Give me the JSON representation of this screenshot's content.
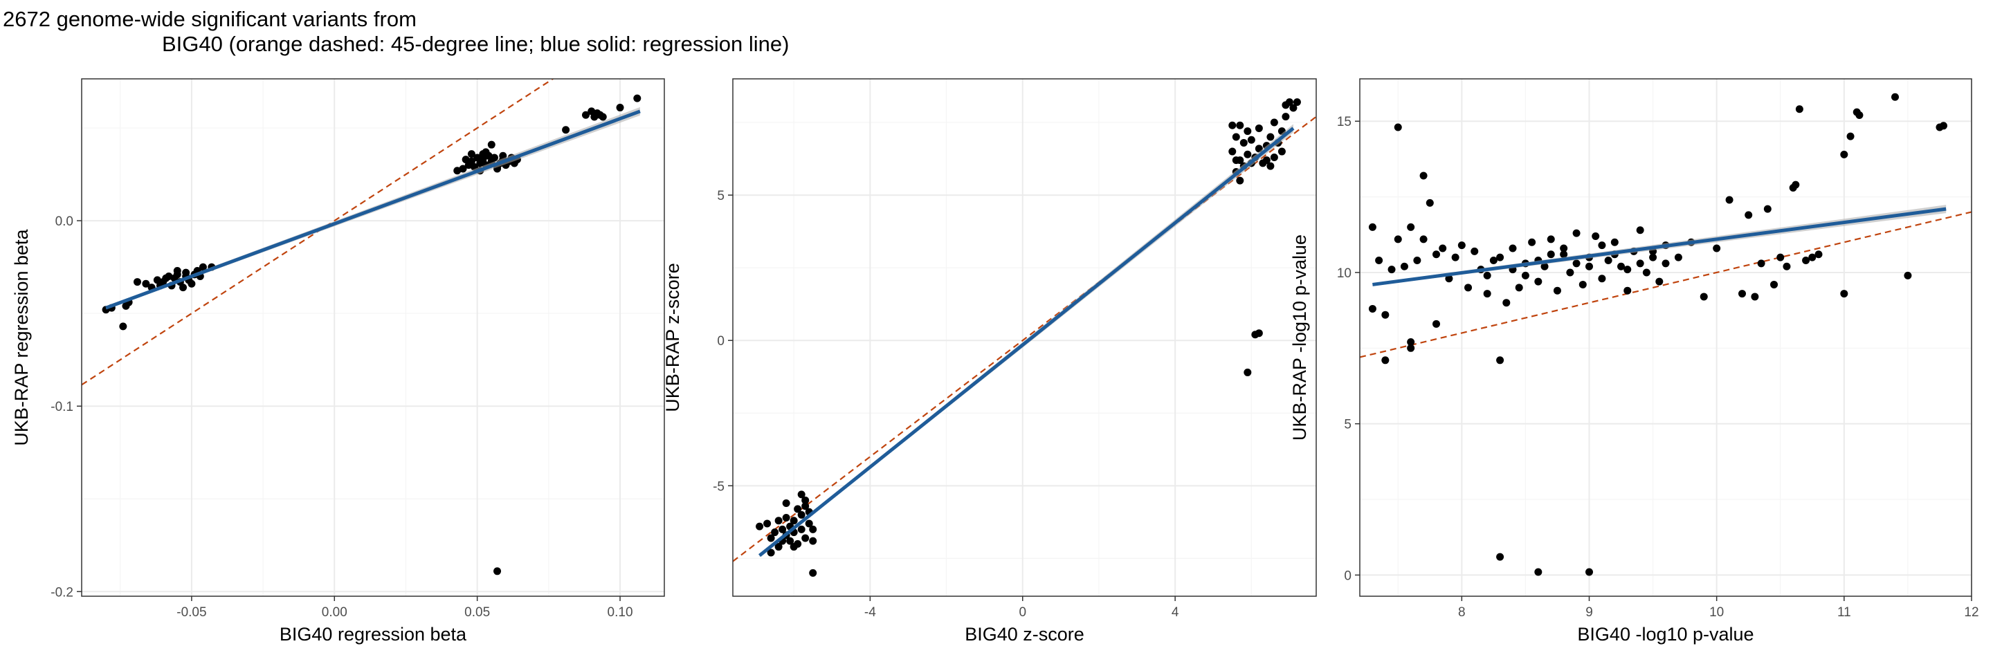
{
  "title": {
    "line1": "2672 genome-wide significant variants from",
    "line2": "BIG40 (orange dashed: 45-degree line; blue solid: regression line)"
  },
  "colors": {
    "points": "#000000",
    "identity_line": "#C0440E",
    "regression_line": "#1F5C99",
    "confidence_band": "#A9A9A9",
    "grid_major": "#EBEBEB",
    "grid_minor": "#F5F5F5",
    "panel_border": "#333333",
    "background": "#FFFFFF"
  },
  "chart_data": [
    {
      "type": "scatter",
      "xlabel": "BIG40 regression beta",
      "ylabel": "UKB-RAP regression beta",
      "xlim": [
        -0.0885,
        0.1155
      ],
      "ylim": [
        -0.2025,
        0.0765
      ],
      "xticks": [
        -0.05,
        0.0,
        0.05,
        0.1
      ],
      "xtick_labels": [
        "-0.05",
        "0.00",
        "0.05",
        "0.10"
      ],
      "yticks": [
        -0.2,
        -0.1,
        0.0
      ],
      "ytick_labels": [
        "-0.2",
        "-0.1",
        "0.0"
      ],
      "grid": true,
      "identity_line": {
        "slope": 1,
        "intercept": 0
      },
      "regression_line": {
        "x": [
          -0.08,
          0.107
        ],
        "y": [
          -0.047,
          0.059
        ]
      },
      "points": [
        [
          -0.08,
          -0.048
        ],
        [
          -0.078,
          -0.047
        ],
        [
          -0.073,
          -0.046
        ],
        [
          -0.074,
          -0.057
        ],
        [
          -0.072,
          -0.044
        ],
        [
          -0.069,
          -0.033
        ],
        [
          -0.066,
          -0.034
        ],
        [
          -0.064,
          -0.036
        ],
        [
          -0.062,
          -0.032
        ],
        [
          -0.06,
          -0.033
        ],
        [
          -0.058,
          -0.03
        ],
        [
          -0.057,
          -0.035
        ],
        [
          -0.056,
          -0.031
        ],
        [
          -0.055,
          -0.029
        ],
        [
          -0.054,
          -0.033
        ],
        [
          -0.053,
          -0.036
        ],
        [
          -0.052,
          -0.03
        ],
        [
          -0.051,
          -0.032
        ],
        [
          -0.05,
          -0.034
        ],
        [
          -0.049,
          -0.029
        ],
        [
          -0.048,
          -0.027
        ],
        [
          -0.047,
          -0.03
        ],
        [
          -0.046,
          -0.025
        ],
        [
          -0.043,
          -0.025
        ],
        [
          -0.055,
          -0.027
        ],
        [
          -0.059,
          -0.031
        ],
        [
          -0.061,
          -0.035
        ],
        [
          -0.052,
          -0.028
        ],
        [
          0.043,
          0.027
        ],
        [
          0.045,
          0.028
        ],
        [
          0.047,
          0.03
        ],
        [
          0.048,
          0.032
        ],
        [
          0.049,
          0.029
        ],
        [
          0.05,
          0.034
        ],
        [
          0.051,
          0.031
        ],
        [
          0.052,
          0.033
        ],
        [
          0.053,
          0.03
        ],
        [
          0.054,
          0.035
        ],
        [
          0.055,
          0.032
        ],
        [
          0.056,
          0.034
        ],
        [
          0.057,
          0.029
        ],
        [
          0.058,
          0.031
        ],
        [
          0.059,
          0.033
        ],
        [
          0.06,
          0.03
        ],
        [
          0.061,
          0.032
        ],
        [
          0.062,
          0.034
        ],
        [
          0.063,
          0.031
        ],
        [
          0.064,
          0.033
        ],
        [
          0.046,
          0.033
        ],
        [
          0.048,
          0.036
        ],
        [
          0.052,
          0.036
        ],
        [
          0.055,
          0.041
        ],
        [
          0.051,
          0.027
        ],
        [
          0.057,
          0.028
        ],
        [
          0.053,
          0.037
        ],
        [
          0.059,
          0.035
        ],
        [
          0.081,
          0.049
        ],
        [
          0.088,
          0.057
        ],
        [
          0.09,
          0.059
        ],
        [
          0.091,
          0.056
        ],
        [
          0.092,
          0.058
        ],
        [
          0.093,
          0.057
        ],
        [
          0.094,
          0.056
        ],
        [
          0.1,
          0.061
        ],
        [
          0.106,
          0.066
        ],
        [
          0.057,
          -0.189
        ]
      ]
    },
    {
      "type": "scatter",
      "xlabel": "BIG40 z-score",
      "ylabel": "UKB-RAP z-score",
      "xlim": [
        -7.6,
        7.7
      ],
      "ylim": [
        -8.8,
        9.0
      ],
      "xticks": [
        -4,
        0,
        4
      ],
      "xtick_labels": [
        "-4",
        "0",
        "4"
      ],
      "yticks": [
        -5,
        0,
        5
      ],
      "ytick_labels": [
        "-5",
        "0",
        "5"
      ],
      "grid": true,
      "identity_line": {
        "slope": 1,
        "intercept": 0
      },
      "regression_line": {
        "x": [
          -6.9,
          7.1
        ],
        "y": [
          -7.4,
          7.3
        ]
      },
      "points": [
        [
          -6.9,
          -6.4
        ],
        [
          -6.7,
          -6.3
        ],
        [
          -6.6,
          -6.8
        ],
        [
          -6.5,
          -6.6
        ],
        [
          -6.4,
          -7.1
        ],
        [
          -6.4,
          -6.2
        ],
        [
          -6.3,
          -6.9
        ],
        [
          -6.3,
          -6.5
        ],
        [
          -6.2,
          -6.7
        ],
        [
          -6.2,
          -6.1
        ],
        [
          -6.1,
          -6.9
        ],
        [
          -6.1,
          -6.4
        ],
        [
          -6.0,
          -6.6
        ],
        [
          -6.0,
          -6.2
        ],
        [
          -5.9,
          -5.8
        ],
        [
          -5.9,
          -7.0
        ],
        [
          -5.8,
          -6.5
        ],
        [
          -5.8,
          -6.0
        ],
        [
          -5.7,
          -6.8
        ],
        [
          -5.7,
          -5.7
        ],
        [
          -5.6,
          -6.3
        ],
        [
          -5.6,
          -5.9
        ],
        [
          -5.5,
          -6.9
        ],
        [
          -5.5,
          -6.5
        ],
        [
          -5.8,
          -5.3
        ],
        [
          -5.7,
          -5.5
        ],
        [
          -5.5,
          -8.0
        ],
        [
          -6.6,
          -7.3
        ],
        [
          -6.0,
          -7.1
        ],
        [
          -6.2,
          -5.6
        ],
        [
          5.5,
          7.4
        ],
        [
          5.5,
          6.5
        ],
        [
          5.6,
          5.8
        ],
        [
          5.6,
          7.0
        ],
        [
          5.7,
          6.2
        ],
        [
          5.7,
          5.5
        ],
        [
          5.8,
          6.8
        ],
        [
          5.8,
          6.0
        ],
        [
          5.9,
          7.2
        ],
        [
          5.9,
          6.4
        ],
        [
          6.0,
          6.1
        ],
        [
          6.0,
          6.9
        ],
        [
          6.1,
          6.3
        ],
        [
          6.2,
          6.6
        ],
        [
          6.2,
          7.3
        ],
        [
          6.3,
          6.1
        ],
        [
          6.4,
          6.7
        ],
        [
          6.4,
          6.2
        ],
        [
          6.5,
          7.0
        ],
        [
          6.6,
          7.5
        ],
        [
          6.6,
          6.3
        ],
        [
          6.7,
          6.8
        ],
        [
          6.8,
          7.2
        ],
        [
          6.8,
          6.5
        ],
        [
          6.9,
          7.7
        ],
        [
          7.0,
          8.2
        ],
        [
          7.1,
          8.0
        ],
        [
          6.9,
          8.1
        ],
        [
          7.2,
          8.2
        ],
        [
          5.7,
          7.4
        ],
        [
          6.5,
          6.0
        ],
        [
          5.6,
          6.2
        ],
        [
          5.9,
          -1.1
        ],
        [
          6.1,
          0.2
        ],
        [
          6.2,
          0.25
        ]
      ]
    },
    {
      "type": "scatter",
      "xlabel": "BIG40 -log10 p-value",
      "ylabel": "UKB-RAP -log10 p-value",
      "xlim": [
        7.2,
        12.0
      ],
      "ylim": [
        -0.7,
        16.4
      ],
      "xticks": [
        8,
        9,
        10,
        11,
        12
      ],
      "xtick_labels": [
        "8",
        "9",
        "10",
        "11",
        "12"
      ],
      "yticks": [
        0,
        5,
        10,
        15
      ],
      "ytick_labels": [
        "0",
        "5",
        "10",
        "15"
      ],
      "grid": true,
      "identity_line": {
        "slope": 1,
        "intercept": 0
      },
      "regression_line": {
        "x": [
          7.3,
          11.8
        ],
        "y": [
          9.6,
          12.1
        ]
      },
      "points": [
        [
          7.3,
          11.5
        ],
        [
          7.3,
          8.8
        ],
        [
          7.35,
          10.4
        ],
        [
          7.4,
          8.6
        ],
        [
          7.45,
          10.1
        ],
        [
          7.5,
          14.8
        ],
        [
          7.5,
          11.1
        ],
        [
          7.55,
          10.2
        ],
        [
          7.6,
          11.5
        ],
        [
          7.6,
          7.7
        ],
        [
          7.65,
          10.4
        ],
        [
          7.7,
          13.2
        ],
        [
          7.75,
          12.3
        ],
        [
          7.7,
          11.1
        ],
        [
          7.8,
          10.6
        ],
        [
          7.8,
          8.3
        ],
        [
          7.85,
          10.8
        ],
        [
          7.9,
          9.8
        ],
        [
          7.95,
          10.5
        ],
        [
          8.0,
          10.9
        ],
        [
          8.05,
          9.5
        ],
        [
          8.1,
          10.7
        ],
        [
          8.15,
          10.1
        ],
        [
          8.2,
          9.3
        ],
        [
          8.25,
          10.4
        ],
        [
          8.3,
          7.1
        ],
        [
          8.3,
          0.6
        ],
        [
          8.35,
          9.0
        ],
        [
          8.4,
          10.8
        ],
        [
          8.45,
          9.5
        ],
        [
          8.5,
          10.3
        ],
        [
          8.55,
          11.0
        ],
        [
          8.6,
          9.7
        ],
        [
          8.6,
          0.1
        ],
        [
          8.65,
          10.2
        ],
        [
          8.7,
          11.1
        ],
        [
          8.75,
          9.4
        ],
        [
          8.8,
          10.6
        ],
        [
          8.85,
          10.0
        ],
        [
          8.9,
          11.3
        ],
        [
          8.95,
          9.6
        ],
        [
          9.0,
          10.5
        ],
        [
          9.0,
          0.1
        ],
        [
          9.05,
          11.2
        ],
        [
          9.1,
          9.8
        ],
        [
          9.15,
          10.4
        ],
        [
          9.2,
          11.0
        ],
        [
          9.25,
          10.2
        ],
        [
          9.3,
          9.4
        ],
        [
          9.35,
          10.7
        ],
        [
          9.4,
          11.4
        ],
        [
          9.45,
          10.0
        ],
        [
          9.5,
          10.5
        ],
        [
          9.55,
          9.7
        ],
        [
          9.6,
          10.9
        ],
        [
          9.6,
          10.3
        ],
        [
          8.2,
          9.9
        ],
        [
          8.4,
          10.1
        ],
        [
          8.6,
          10.4
        ],
        [
          8.8,
          10.8
        ],
        [
          9.0,
          10.2
        ],
        [
          9.2,
          10.6
        ],
        [
          9.4,
          10.3
        ],
        [
          8.3,
          10.5
        ],
        [
          8.5,
          9.9
        ],
        [
          8.7,
          10.6
        ],
        [
          8.9,
          10.3
        ],
        [
          9.1,
          10.9
        ],
        [
          9.3,
          10.1
        ],
        [
          9.5,
          10.7
        ],
        [
          9.7,
          10.5
        ],
        [
          9.8,
          11.0
        ],
        [
          9.9,
          9.2
        ],
        [
          10.0,
          10.8
        ],
        [
          10.1,
          12.4
        ],
        [
          10.2,
          9.3
        ],
        [
          10.25,
          11.9
        ],
        [
          10.3,
          9.2
        ],
        [
          10.35,
          10.3
        ],
        [
          10.4,
          12.1
        ],
        [
          10.45,
          9.6
        ],
        [
          10.5,
          10.5
        ],
        [
          10.55,
          10.2
        ],
        [
          10.6,
          12.8
        ],
        [
          10.62,
          12.9
        ],
        [
          10.65,
          15.4
        ],
        [
          10.7,
          10.4
        ],
        [
          10.75,
          10.5
        ],
        [
          10.8,
          10.6
        ],
        [
          11.0,
          13.9
        ],
        [
          11.05,
          14.5
        ],
        [
          11.1,
          15.3
        ],
        [
          11.12,
          15.2
        ],
        [
          11.0,
          9.3
        ],
        [
          11.4,
          15.8
        ],
        [
          11.5,
          9.9
        ],
        [
          11.75,
          14.8
        ],
        [
          11.78,
          14.85
        ],
        [
          7.4,
          7.1
        ],
        [
          7.6,
          7.5
        ]
      ]
    }
  ]
}
